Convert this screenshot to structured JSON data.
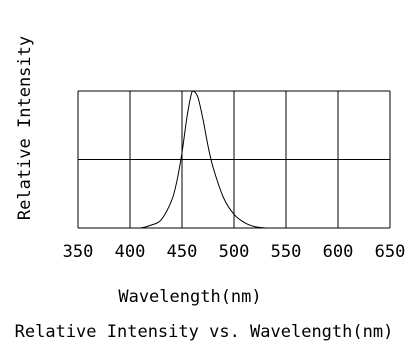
{
  "chart_data": {
    "type": "line",
    "title": "Relative Intensity vs. Wavelength(nm)",
    "xlabel": "Wavelength(nm)",
    "ylabel": "Relative Intensity",
    "xlim": [
      350,
      650
    ],
    "ylim": [
      0,
      1
    ],
    "grid": true,
    "x_ticks": [
      350,
      400,
      450,
      500,
      550,
      600,
      650
    ],
    "series": [
      {
        "x": [
          400,
          410,
          420,
          430,
          440,
          445,
          450,
          455,
          460,
          465,
          470,
          475,
          480,
          490,
          500,
          510,
          520,
          530
        ],
        "values": [
          0.0,
          0.0,
          0.02,
          0.06,
          0.2,
          0.34,
          0.55,
          0.82,
          1.0,
          0.96,
          0.8,
          0.6,
          0.44,
          0.22,
          0.1,
          0.04,
          0.01,
          0.0
        ]
      }
    ]
  }
}
